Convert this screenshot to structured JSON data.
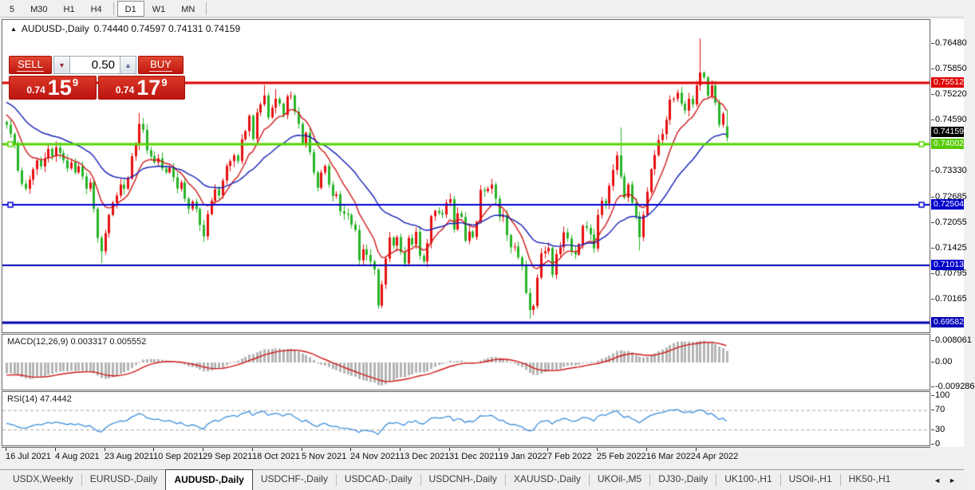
{
  "toolbar": {
    "timeframes": [
      "5",
      "M30",
      "H1",
      "H4",
      "D1",
      "W1",
      "MN"
    ],
    "active": "D1",
    "separators_after": [
      "H4",
      "MN"
    ]
  },
  "chart": {
    "title": "AUDUSD-,Daily",
    "ohlc_text": "0.74440 0.74597 0.74131 0.74159"
  },
  "trade_panel": {
    "sell_label": "SELL",
    "buy_label": "BUY",
    "volume": "0.50",
    "sell_price": {
      "small": "0.74",
      "big": "15",
      "sup": "9"
    },
    "buy_price": {
      "small": "0.74",
      "big": "17",
      "sup": "9"
    }
  },
  "price_axis": {
    "ticks": [
      "0.76480",
      "0.75850",
      "0.75220",
      "0.74590",
      "0.73330",
      "0.72685",
      "0.72055",
      "0.71425",
      "0.70795",
      "0.70165"
    ],
    "badges": [
      {
        "text": "0.75512",
        "bg": "#df0000",
        "fg": "#ffffff"
      },
      {
        "text": "0.74159",
        "bg": "#000000",
        "fg": "#ffffff",
        "offset": -7
      },
      {
        "text": "0.74002",
        "bg": "#56ca00",
        "fg": "#ffffff",
        "offset": 0
      },
      {
        "text": "0.72504",
        "bg": "#0000cd",
        "fg": "#ffffff"
      },
      {
        "text": "0.71013",
        "bg": "#0000cd",
        "fg": "#ffffff"
      },
      {
        "text": "0.69582",
        "bg": "#0000b8",
        "fg": "#ffffff"
      }
    ]
  },
  "chart_data": {
    "type": "candlestick",
    "symbol": "AUDUSD-",
    "timeframe": "Daily",
    "title": "AUDUSD-,Daily 0.74440 0.74597 0.74131 0.74159",
    "x_labels": [
      "16 Jul 2021",
      "4 Aug 2021",
      "23 Aug 2021",
      "10 Sep 2021",
      "29 Sep 2021",
      "18 Oct 2021",
      "5 Nov 2021",
      "24 Nov 2021",
      "13 Dec 2021",
      "31 Dec 2021",
      "19 Jan 2022",
      "7 Feb 2022",
      "25 Feb 2022",
      "16 Mar 2022",
      "4 Apr 2022"
    ],
    "label_every": 13,
    "open_first": 0.7455,
    "closes": [
      0.7448,
      0.7425,
      0.7398,
      0.7335,
      0.7302,
      0.729,
      0.7312,
      0.7338,
      0.736,
      0.7345,
      0.7365,
      0.7388,
      0.737,
      0.7392,
      0.7378,
      0.736,
      0.734,
      0.7355,
      0.733,
      0.7345,
      0.732,
      0.729,
      0.7305,
      0.724,
      0.7168,
      0.7135,
      0.718,
      0.7225,
      0.7255,
      0.7273,
      0.73,
      0.729,
      0.7315,
      0.737,
      0.74,
      0.745,
      0.7435,
      0.7385,
      0.737,
      0.7355,
      0.7365,
      0.734,
      0.733,
      0.7342,
      0.7318,
      0.729,
      0.7305,
      0.7265,
      0.724,
      0.7258,
      0.724,
      0.72,
      0.7172,
      0.7227,
      0.726,
      0.7288,
      0.7273,
      0.731,
      0.7346,
      0.7358,
      0.7372,
      0.7358,
      0.7412,
      0.7432,
      0.747,
      0.7413,
      0.7478,
      0.7498,
      0.752,
      0.7466,
      0.749,
      0.7512,
      0.75,
      0.7472,
      0.7518,
      0.752,
      0.748,
      0.745,
      0.7402,
      0.7428,
      0.738,
      0.733,
      0.7292,
      0.733,
      0.7346,
      0.73,
      0.7272,
      0.7276,
      0.7234,
      0.7228,
      0.7225,
      0.7201,
      0.7188,
      0.7113,
      0.714,
      0.7126,
      0.711,
      0.709,
      0.7001,
      0.7053,
      0.7117,
      0.7169,
      0.7149,
      0.717,
      0.7133,
      0.7105,
      0.7168,
      0.7152,
      0.7183,
      0.7124,
      0.711,
      0.7155,
      0.7222,
      0.7235,
      0.723,
      0.7226,
      0.7255,
      0.7264,
      0.7189,
      0.7229,
      0.722,
      0.7161,
      0.7184,
      0.717,
      0.7208,
      0.7287,
      0.7284,
      0.729,
      0.73,
      0.7265,
      0.722,
      0.7225,
      0.7175,
      0.7145,
      0.7147,
      0.712,
      0.71,
      0.7032,
      0.699,
      0.7,
      0.707,
      0.713,
      0.7135,
      0.7143,
      0.7077,
      0.7128,
      0.7145,
      0.7182,
      0.7167,
      0.7135,
      0.7127,
      0.7153,
      0.7198,
      0.7193,
      0.7177,
      0.7142,
      0.7225,
      0.726,
      0.7253,
      0.7297,
      0.7336,
      0.7372,
      0.732,
      0.7268,
      0.73,
      0.7255,
      0.7222,
      0.717,
      0.7225,
      0.7282,
      0.7338,
      0.7373,
      0.741,
      0.7425,
      0.746,
      0.751,
      0.7512,
      0.7527,
      0.75,
      0.7483,
      0.7512,
      0.7498,
      0.7545,
      0.7577,
      0.7565,
      0.752,
      0.7545,
      0.7502,
      0.7448,
      0.7475,
      0.7416
    ],
    "extremes": {
      "25": {
        "low": 0.7106
      },
      "35": {
        "high": 0.7477
      },
      "68": {
        "high": 0.7546
      },
      "71": {
        "high": 0.7536
      },
      "98": {
        "low": 0.6993
      },
      "138": {
        "low": 0.6968
      },
      "162": {
        "high": 0.7441
      },
      "167": {
        "low": 0.7137
      },
      "183": {
        "high": 0.7661
      },
      "190": {
        "open": 0.7444,
        "high": 0.74597,
        "low": 0.74131,
        "close": 0.74159
      }
    },
    "price_range": [
      0.6935,
      0.7707
    ],
    "up_color": "#e60f0f",
    "down_color": "#28b428",
    "hlines": [
      {
        "price": 0.75512,
        "color": "#e00000",
        "width": 3,
        "handles": false
      },
      {
        "price": 0.74002,
        "color": "#55d400",
        "width": 3,
        "handles": true
      },
      {
        "price": 0.72504,
        "color": "#0000d8",
        "width": 2,
        "handles": true
      },
      {
        "price": 0.71013,
        "color": "#0000b4",
        "width": 2,
        "handles": false
      },
      {
        "price": 0.69582,
        "color": "#0000b4",
        "width": 3,
        "handles": false
      }
    ],
    "ma": [
      {
        "period": 10,
        "color": "#d01818",
        "seed": 0.7478
      },
      {
        "period": 30,
        "color": "#1520b4",
        "seed": 0.7507
      }
    ],
    "macd": {
      "label": "MACD(12,26,9) 0.003317 0.005552",
      "ticks": [
        "0.008061",
        "0.00",
        "-0.009286"
      ],
      "tick_values": [
        0.008061,
        0,
        -0.009286
      ],
      "hist_color": "#b4b4b4",
      "signal_color": "#d01818",
      "seed_fast": 0.7462,
      "seed_slow": 0.7505,
      "seed_signal": -0.005
    },
    "rsi": {
      "label": "RSI(14) 47.4442",
      "ticks": [
        "100",
        "70",
        "30",
        "0"
      ],
      "tick_values": [
        100,
        70,
        30,
        0
      ],
      "levels": [
        70,
        30
      ],
      "color": "#3c8fdc",
      "seed_gain": 0.0022,
      "seed_loss": 0.0028
    }
  },
  "tabs": {
    "items": [
      "USDX,Weekly",
      "EURUSD-,Daily",
      "AUDUSD-,Daily",
      "USDCHF-,Daily",
      "USDCAD-,Daily",
      "USDCNH-,Daily",
      "XAUUSD-,Daily",
      "UKOil-,M5",
      "DJ30-,Daily",
      "UK100-,H1",
      "USOil-,H1",
      "HK50-,H1"
    ],
    "active_index": 2,
    "scroll_left": "◄",
    "scroll_right": "►"
  }
}
